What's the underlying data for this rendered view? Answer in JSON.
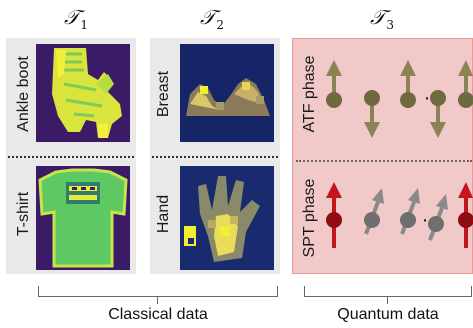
{
  "tasks": {
    "t1": {
      "symbol": "𝒯",
      "sub": "1"
    },
    "t2": {
      "symbol": "𝒯",
      "sub": "2"
    },
    "t3": {
      "symbol": "𝒯",
      "sub": "3"
    }
  },
  "classical": {
    "fashion_top_label": "Ankle boot",
    "fashion_bottom_label": "T-shirt",
    "medical_top_label": "Breast",
    "medical_bottom_label": "Hand"
  },
  "quantum": {
    "top_label": "ATF phase",
    "bottom_label": "SPT phase",
    "dots": "⋯"
  },
  "groups": {
    "classical_label": "Classical data",
    "quantum_label": "Quantum data"
  },
  "colors": {
    "dark_purple": "#3b1a66",
    "yellow": "#f2ee36",
    "green": "#5ec962",
    "navy": "#1a2a6e",
    "olive": "#8c8354",
    "red": "#c4161c",
    "grey_spin": "#8a8a8a",
    "quantum_panel": "#f1c9c9"
  }
}
